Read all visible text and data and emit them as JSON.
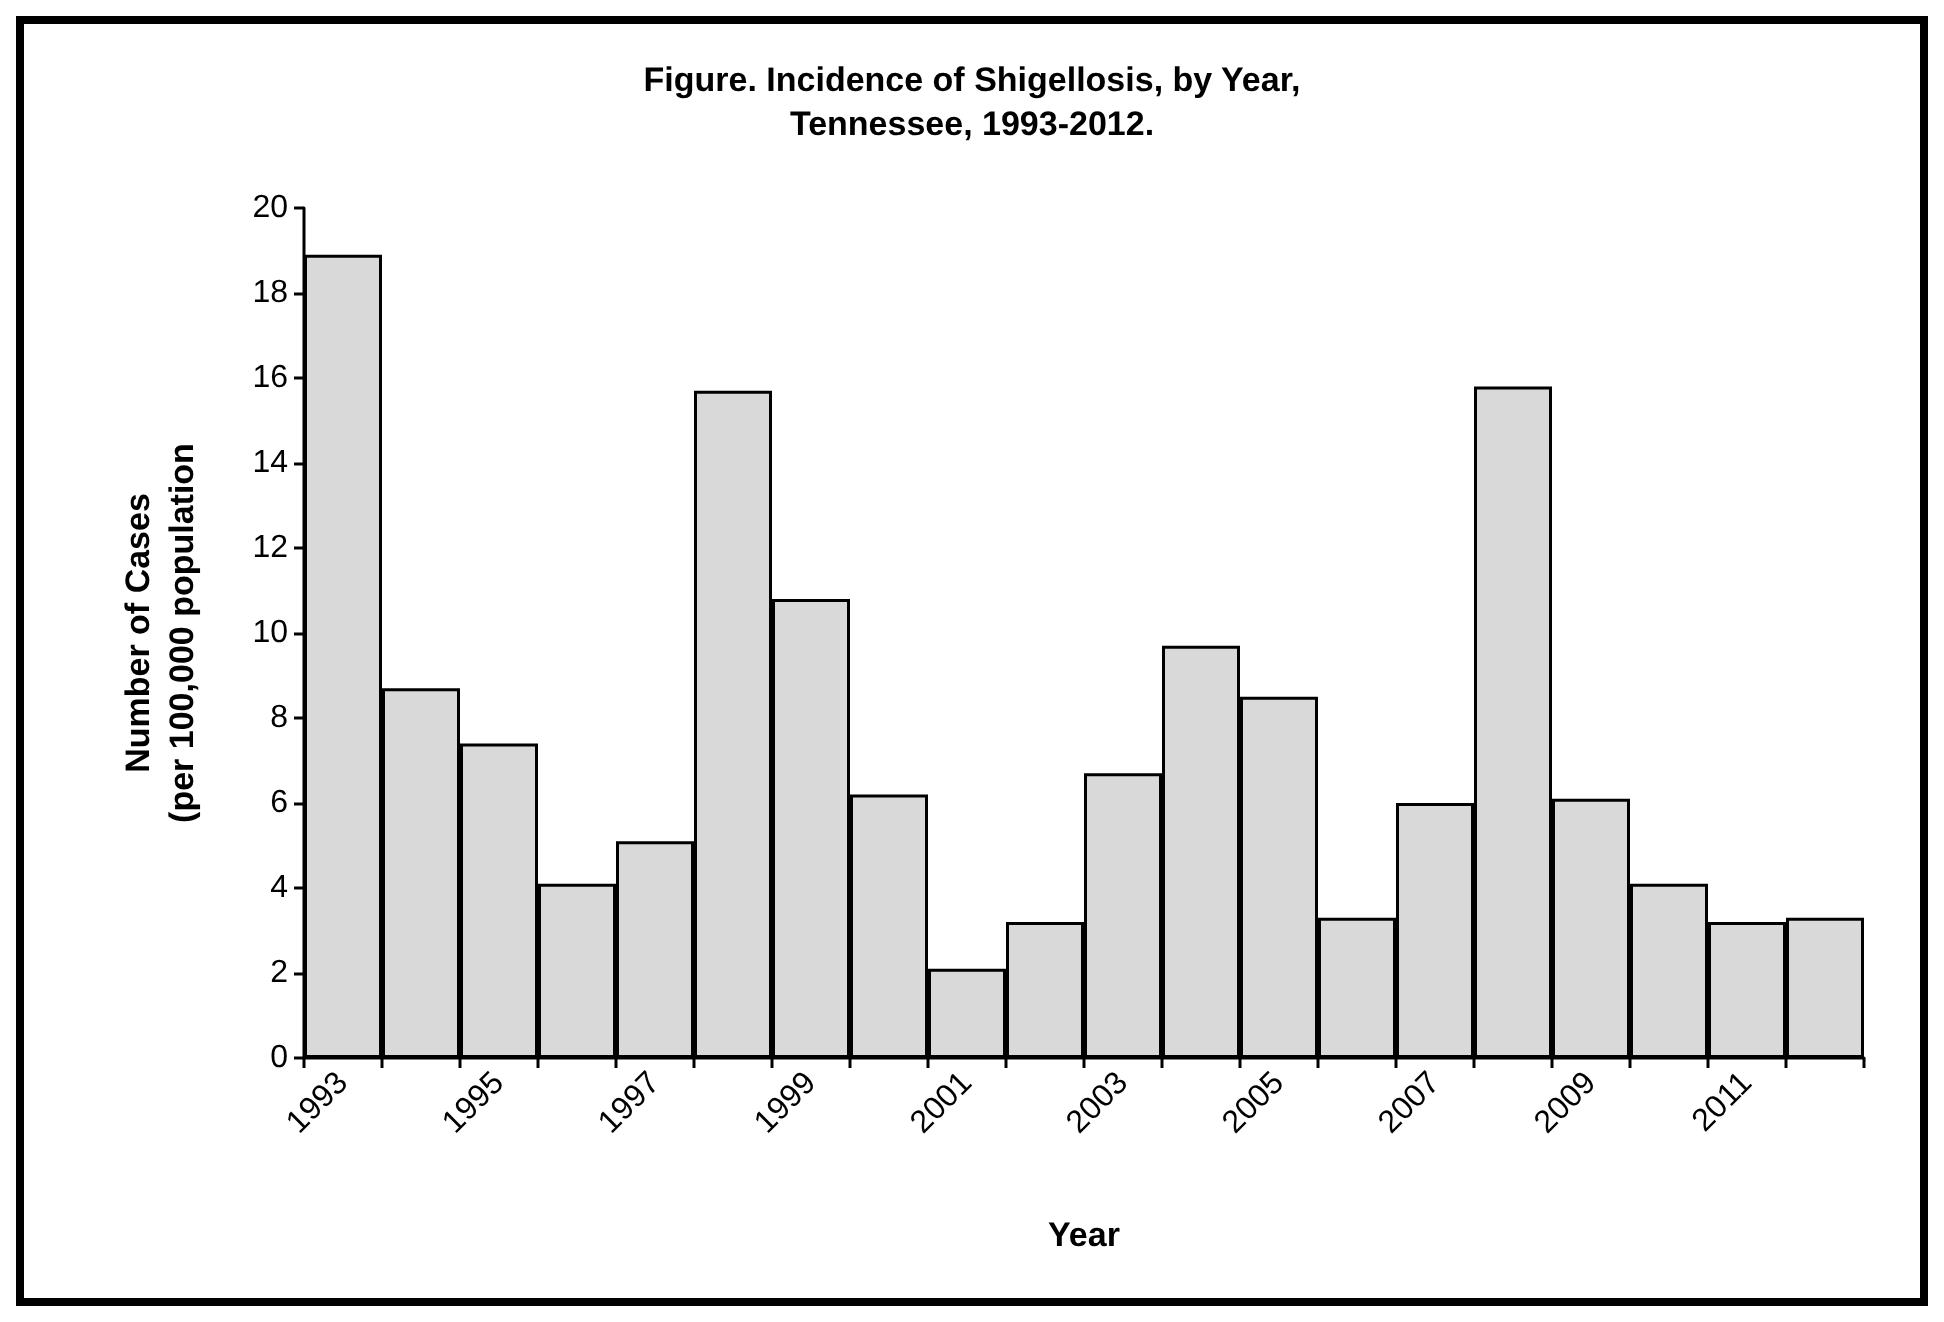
{
  "chart_data": {
    "type": "bar",
    "title": "Figure. Incidence of Shigellosis, by Year,\nTennessee, 1993-2012.",
    "xlabel": "Year",
    "ylabel": "Number of Cases\n(per 100,000 population",
    "categories": [
      "1993",
      null,
      "1995",
      null,
      "1997",
      null,
      "1999",
      null,
      "2001",
      null,
      "2003",
      null,
      "2005",
      null,
      "2007",
      null,
      "2009",
      null,
      "2011",
      null
    ],
    "values": [
      18.9,
      8.7,
      7.4,
      4.1,
      5.1,
      15.7,
      10.8,
      6.2,
      2.1,
      3.2,
      6.7,
      9.7,
      8.5,
      3.3,
      6.0,
      15.8,
      6.1,
      4.1,
      3.2,
      3.3
    ],
    "color": "#d9d9d9",
    "ylim": [
      0,
      20
    ],
    "yticks": [
      0,
      2,
      4,
      6,
      8,
      10,
      12,
      14,
      16,
      18,
      20
    ],
    "grid": false
  }
}
